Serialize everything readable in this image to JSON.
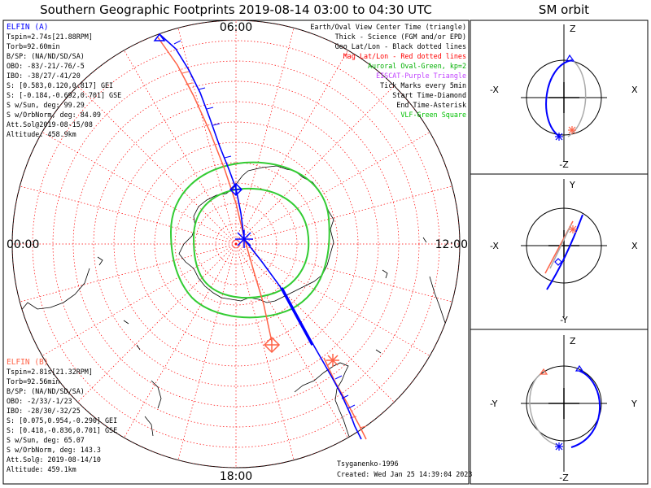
{
  "title": "Southern Geographic Footprints 2019-08-14 03:00 to 04:30 UTC",
  "orbit_title": "SM orbit",
  "hour_labels": {
    "top": "06:00",
    "left": "00:00",
    "right": "12:00",
    "bottom": "18:00"
  },
  "elfin_a": {
    "heading": "ELFIN (A)",
    "color": "#0000ff",
    "lines": [
      "Tspin=2.74s[21.88RPM]",
      "Torb=92.60min",
      "B/SP: (NA/ND/SD/SA)",
      "OBO: -83/-21/-76/-5",
      "IBO: -38/27/-41/20",
      "S: [0.583,0.120,0.817] GEI",
      "S: [-0.184,-0.692,0.701] GSE",
      "S w/Sun, deg: 99.29",
      "S w/OrbNorm, deg: 84.09",
      "Att.Sol@2019-08-15/08",
      "Altitude: 458.9km"
    ]
  },
  "elfin_b": {
    "heading": "ELFIN (B)",
    "color": "#ff6347",
    "lines": [
      "Tspin=2.81s[21.32RPM]",
      "Torb=92.56min",
      "B/SP: (NA/ND/SD/SA)",
      "OBO: -2/33/-1/23",
      "IBO: -28/30/-32/25",
      "S: [0.075,0.954,-0.290] GEI",
      "S: [0.418,-0.836,0.701] GSE",
      "S w/Sun, deg: 65.07",
      "S w/OrbNorm, deg: 143.3",
      "Att.Sol@: 2019-08-14/10",
      "Altitude: 459.1km"
    ]
  },
  "legend": [
    {
      "text": "Earth/Oval View Center Time (triangle)",
      "color": "#000000"
    },
    {
      "text": "Thick - Science (FGM and/or EPD)",
      "color": "#000000"
    },
    {
      "text": "Geo Lat/Lon - Black dotted lines",
      "color": "#000000"
    },
    {
      "text": "Mag Lat/Lon - Red dotted lines",
      "color": "#ff0000"
    },
    {
      "text": "Auroral Oval-Green, kp=2",
      "color": "#00b000"
    },
    {
      "text": "EISCAT-Purple Triangle",
      "color": "#c040ff"
    },
    {
      "text": "Tick Marks every 5min",
      "color": "#000000"
    },
    {
      "text": "Start Time-Diamond",
      "color": "#000000"
    },
    {
      "text": "End Time-Asterisk",
      "color": "#000000"
    },
    {
      "text": "VLF-Green Square",
      "color": "#00c000"
    }
  ],
  "model_label": "Tsyganenko-1996",
  "created_label": "Created: Wed Jan 25 14:39:04 2023",
  "orbit_panels": [
    {
      "top": "Z",
      "bottom": "-Z",
      "left": "-X",
      "right": "X"
    },
    {
      "top": "Y",
      "bottom": "-Y",
      "left": "-X",
      "right": "X"
    },
    {
      "top": "Z",
      "bottom": "-Z",
      "left": "-Y",
      "right": "Y"
    }
  ],
  "colors": {
    "elfin_a": "#0000ff",
    "elfin_b": "#ff6347",
    "mag_grid": "#ff0000",
    "geo_grid": "#000000",
    "auroral_oval": "#33cc33",
    "background": "#ffffff"
  }
}
